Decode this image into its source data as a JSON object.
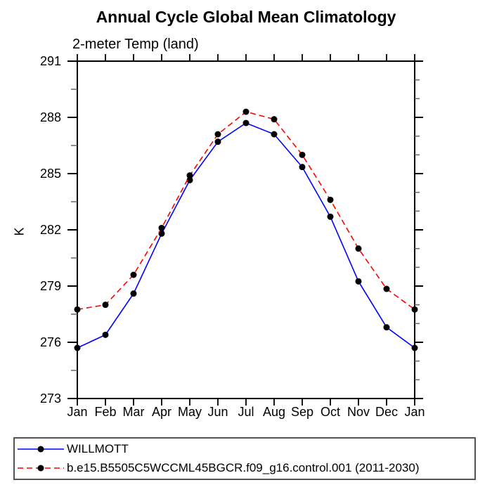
{
  "title": "Annual Cycle Global Mean Climatology",
  "subtitle": "2-meter Temp (land)",
  "chart_data": {
    "type": "line",
    "title": "Annual Cycle Global Mean Climatology",
    "subtitle": "2-meter Temp (land)",
    "xlabel": "",
    "ylabel": "K",
    "x_categories": [
      "Jan",
      "Feb",
      "Mar",
      "Apr",
      "May",
      "Jun",
      "Jul",
      "Aug",
      "Sep",
      "Oct",
      "Nov",
      "Dec",
      "Jan"
    ],
    "ylim": [
      273,
      291
    ],
    "ytick_major": [
      273,
      276,
      279,
      282,
      285,
      288,
      291
    ],
    "y_minor_step_left": 1.5,
    "y_minor_step_right": 1.0,
    "grid": false,
    "legend_position": "bottom-left-box",
    "series": [
      {
        "name": "WILLMOTT",
        "color": "#0000ff",
        "line_style": "solid",
        "marker": "filled-circle",
        "marker_color": "#000000",
        "values": [
          275.7,
          276.4,
          278.6,
          281.8,
          284.65,
          286.7,
          287.7,
          287.1,
          285.35,
          282.7,
          279.25,
          276.8,
          275.7
        ]
      },
      {
        "name": "b.e15.B5505C5WCCML45BGCR.f09_g16.control.001 (2011-2030)",
        "color": "#ff0000",
        "line_style": "dashed",
        "marker": "filled-circle",
        "marker_color": "#000000",
        "values": [
          277.75,
          278.0,
          279.6,
          282.1,
          284.9,
          287.1,
          288.3,
          287.9,
          286.0,
          283.6,
          281.0,
          278.85,
          277.75
        ]
      }
    ]
  }
}
